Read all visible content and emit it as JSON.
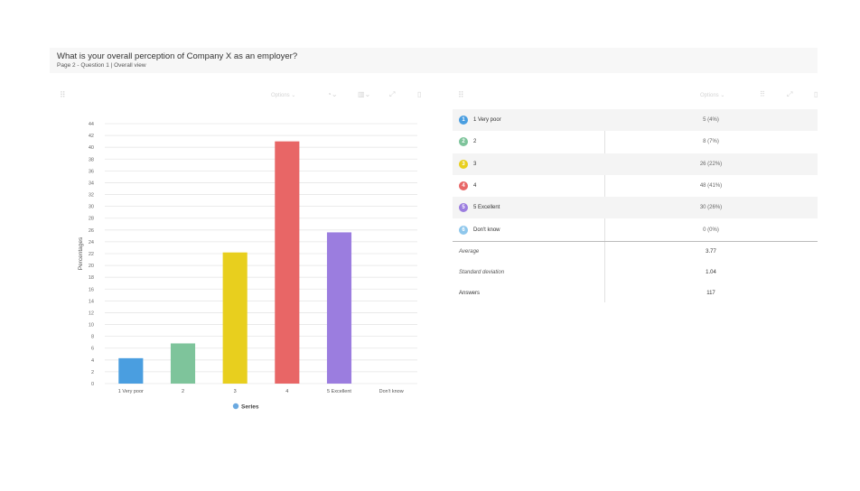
{
  "header": {
    "title": "What is your overall perception of Company X as an employer?",
    "subtitle": "Page 2 - Question 1 | Overall view"
  },
  "left_toolbar": {
    "options_label": "Options",
    "drag_icon": "drag-handle-icon"
  },
  "right_toolbar": {
    "options_label": "Options",
    "drag_icon": "drag-handle-icon"
  },
  "chart_data": {
    "type": "bar",
    "categories": [
      "1 Very poor",
      "2",
      "3",
      "4",
      "5 Excellent",
      "Don't know"
    ],
    "values": [
      4.3,
      6.8,
      22.2,
      41.0,
      25.6,
      0
    ],
    "colors": [
      "#4a9ee0",
      "#7ec49b",
      "#e8cf1e",
      "#e86666",
      "#9b7ddf",
      "#8fc7ec"
    ],
    "ylabel": "Percentages",
    "xlabel": "",
    "ylim": [
      0,
      44
    ],
    "yticks": [
      0,
      2,
      4,
      6,
      8,
      10,
      12,
      14,
      16,
      18,
      20,
      22,
      24,
      26,
      28,
      30,
      32,
      34,
      36,
      38,
      40,
      42,
      44
    ],
    "legend": "Series",
    "legend_position": "bottom",
    "grid": true
  },
  "table": {
    "rows": [
      {
        "badge": "1",
        "label": "1 Very poor",
        "value": "5 (4%)",
        "color": "#4a9ee0"
      },
      {
        "badge": "2",
        "label": "2",
        "value": "8 (7%)",
        "color": "#7ec49b"
      },
      {
        "badge": "3",
        "label": "3",
        "value": "26 (22%)",
        "color": "#e8cf1e"
      },
      {
        "badge": "4",
        "label": "4",
        "value": "48 (41%)",
        "color": "#e86666"
      },
      {
        "badge": "5",
        "label": "5 Excellent",
        "value": "30 (26%)",
        "color": "#9b7ddf"
      },
      {
        "badge": "6",
        "label": "Don't know",
        "value": "0 (0%)",
        "color": "#8fc7ec"
      }
    ],
    "stats": [
      {
        "label": "Average",
        "value": "3.77"
      },
      {
        "label": "Standard deviation",
        "value": "1.04"
      },
      {
        "label": "Answers",
        "value": "117"
      }
    ]
  }
}
